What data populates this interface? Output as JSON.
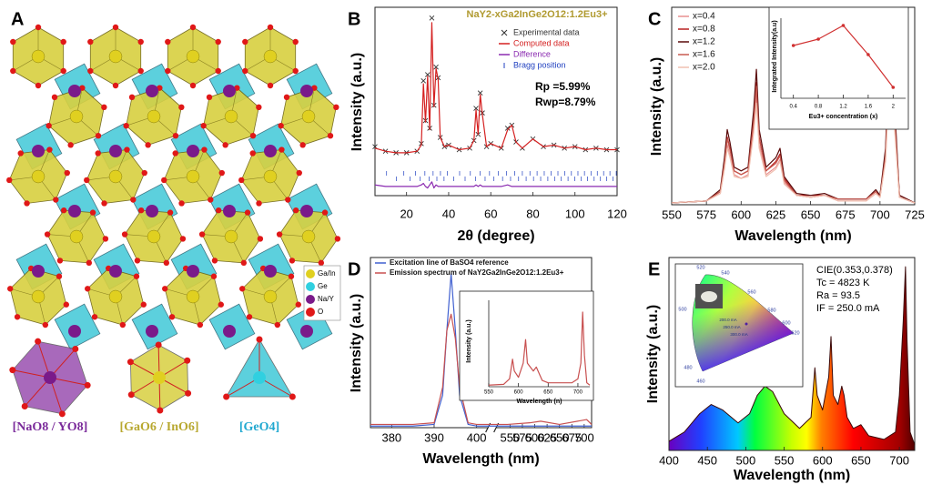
{
  "structure_panel": {
    "panel_label": "A",
    "legend": [
      {
        "label": "Ga/In",
        "color": "#e0d020"
      },
      {
        "label": "Ge",
        "color": "#30d0e0"
      },
      {
        "label": "Na/Y",
        "color": "#7a1a8a"
      },
      {
        "label": "O",
        "color": "#e01818"
      }
    ],
    "units": [
      {
        "label": "[NaO8 / YO8]",
        "color": "#7a2a9a"
      },
      {
        "label": "[GaO6 / InO6]",
        "color": "#b8a830"
      },
      {
        "label": "[GeO4]",
        "color": "#20a8d0"
      }
    ]
  },
  "chart_data": [
    {
      "type": "line",
      "panel_label": "B",
      "title": "NaY2-xGa2InGe2O12:1.2Eu3+",
      "annotations": [
        "Rp =5.99%",
        "Rwp=8.79%"
      ],
      "xlabel": "2θ (degree)",
      "ylabel": "Intensity (a.u.)",
      "xlim": [
        5,
        120
      ],
      "ylim": [
        -1.8,
        10.5
      ],
      "xticks": [
        20,
        40,
        60,
        80,
        100,
        120
      ],
      "x": [
        5,
        10,
        15,
        20,
        25,
        27,
        28,
        29,
        30,
        31,
        32,
        33,
        34,
        35,
        36,
        38,
        40,
        45,
        50,
        52,
        53,
        54,
        55,
        56,
        58,
        60,
        65,
        68,
        70,
        72,
        75,
        80,
        85,
        90,
        95,
        100,
        105,
        110,
        115,
        120
      ],
      "series": [
        {
          "name": "Experimental data",
          "color": "#333333",
          "style": "cross",
          "values": [
            1.4,
            1.1,
            1.0,
            1.0,
            1.1,
            1.6,
            5.7,
            3.1,
            6.1,
            2.6,
            9.8,
            4.1,
            6.6,
            5.9,
            2.0,
            1.4,
            1.5,
            1.2,
            1.3,
            1.8,
            3.9,
            2.2,
            4.9,
            3.6,
            1.4,
            1.6,
            1.3,
            2.6,
            2.8,
            1.7,
            1.3,
            1.9,
            1.4,
            1.5,
            1.3,
            1.4,
            1.2,
            1.3,
            1.2,
            1.2
          ]
        },
        {
          "name": "Computed data",
          "color": "#d42020",
          "style": "line",
          "values": [
            1.3,
            1.1,
            1.0,
            1.0,
            1.1,
            1.5,
            5.5,
            3.0,
            6.0,
            2.5,
            9.5,
            4.0,
            6.5,
            5.8,
            2.0,
            1.4,
            1.5,
            1.2,
            1.3,
            1.8,
            3.8,
            2.2,
            4.8,
            3.5,
            1.4,
            1.6,
            1.3,
            2.5,
            2.8,
            1.7,
            1.3,
            1.9,
            1.4,
            1.5,
            1.3,
            1.4,
            1.2,
            1.3,
            1.2,
            1.2
          ]
        },
        {
          "name": "Difference",
          "color": "#8a2ab0",
          "style": "line",
          "values": [
            -1.1,
            -1.2,
            -1.2,
            -1.2,
            -1.2,
            -1.1,
            -1.0,
            -1.2,
            -1.3,
            -1.1,
            -0.9,
            -1.3,
            -1.1,
            -1.2,
            -1.2,
            -1.2,
            -1.2,
            -1.2,
            -1.2,
            -1.2,
            -1.1,
            -1.2,
            -1.1,
            -1.2,
            -1.2,
            -1.2,
            -1.2,
            -1.1,
            -1.2,
            -1.2,
            -1.2,
            -1.2,
            -1.2,
            -1.2,
            -1.2,
            -1.2,
            -1.2,
            -1.2,
            -1.2,
            -1.2
          ]
        }
      ],
      "bragg": {
        "name": "Bragg position",
        "color": "#2040c0",
        "x": [
          10.5,
          15.2,
          18.7,
          21.6,
          24.2,
          26.5,
          28.7,
          30.7,
          32.6,
          34.4,
          36.1,
          37.8,
          39.4,
          42.4,
          45.2,
          47.8,
          50.3,
          52.7,
          55.0,
          57.3,
          59.4,
          61.5,
          63.6,
          65.6,
          67.5,
          69.4,
          71.3,
          73.2,
          75.0,
          76.8,
          78.6,
          80.3,
          82.0,
          83.7,
          85.4,
          87.1,
          88.7,
          90.3,
          91.9,
          93.5,
          95.1,
          96.7,
          98.3,
          99.9,
          101.4,
          103.0,
          104.5,
          106.0,
          107.6,
          109.1,
          110.6,
          112.1,
          113.6,
          115.1,
          116.6,
          118.1,
          119.6
        ]
      }
    },
    {
      "type": "line",
      "panel_label": "C",
      "xlabel": "Wavelength (nm)",
      "ylabel": "Intensity (a.u.)",
      "xlim": [
        550,
        725
      ],
      "ylim": [
        0,
        1.05
      ],
      "xticks": [
        550,
        575,
        600,
        625,
        650,
        675,
        700,
        725
      ],
      "x": [
        550,
        575,
        585,
        588,
        590,
        592,
        595,
        600,
        605,
        609,
        611,
        613,
        618,
        625,
        628,
        631,
        640,
        650,
        660,
        670,
        690,
        697,
        700,
        704,
        706,
        708,
        710,
        714,
        725
      ],
      "series": [
        {
          "name": "x=0.4",
          "color": "#e89090",
          "values": [
            0.01,
            0.02,
            0.06,
            0.2,
            0.32,
            0.26,
            0.16,
            0.14,
            0.16,
            0.4,
            0.58,
            0.32,
            0.16,
            0.2,
            0.24,
            0.12,
            0.05,
            0.04,
            0.05,
            0.02,
            0.02,
            0.06,
            0.04,
            0.24,
            0.56,
            0.8,
            0.48,
            0.04,
            0.01
          ]
        },
        {
          "name": "x=0.8",
          "color": "#b82020",
          "values": [
            0.01,
            0.02,
            0.07,
            0.23,
            0.36,
            0.3,
            0.18,
            0.16,
            0.18,
            0.45,
            0.65,
            0.36,
            0.18,
            0.23,
            0.27,
            0.14,
            0.05,
            0.05,
            0.05,
            0.03,
            0.03,
            0.07,
            0.05,
            0.27,
            0.63,
            0.9,
            0.54,
            0.05,
            0.01
          ]
        },
        {
          "name": "x=1.2",
          "color": "#5a0a0a",
          "values": [
            0.01,
            0.02,
            0.08,
            0.25,
            0.4,
            0.33,
            0.2,
            0.18,
            0.2,
            0.5,
            0.72,
            0.4,
            0.2,
            0.25,
            0.3,
            0.15,
            0.06,
            0.05,
            0.06,
            0.03,
            0.03,
            0.08,
            0.05,
            0.3,
            0.7,
            1.0,
            0.6,
            0.05,
            0.01
          ]
        },
        {
          "name": "x=1.6",
          "color": "#c85a50",
          "values": [
            0.01,
            0.02,
            0.07,
            0.22,
            0.35,
            0.29,
            0.18,
            0.16,
            0.18,
            0.44,
            0.63,
            0.35,
            0.18,
            0.22,
            0.26,
            0.13,
            0.05,
            0.04,
            0.05,
            0.03,
            0.03,
            0.07,
            0.04,
            0.26,
            0.62,
            0.88,
            0.53,
            0.04,
            0.01
          ]
        },
        {
          "name": "x=2.0",
          "color": "#f0c0b0",
          "values": [
            0.01,
            0.02,
            0.06,
            0.19,
            0.3,
            0.25,
            0.15,
            0.14,
            0.15,
            0.38,
            0.54,
            0.3,
            0.15,
            0.19,
            0.23,
            0.11,
            0.05,
            0.04,
            0.05,
            0.02,
            0.02,
            0.06,
            0.04,
            0.23,
            0.53,
            0.75,
            0.45,
            0.04,
            0.01
          ]
        }
      ]
    },
    {
      "type": "line",
      "xlabel": "Eu3+ concentration (x)",
      "ylabel": "Integrated Intensity(a.u)",
      "xlim": [
        0.2,
        2.2
      ],
      "ylim": [
        0.2,
        1.08
      ],
      "xticks": [
        0.4,
        0.8,
        1.2,
        1.6,
        2.0
      ],
      "x": [
        0.4,
        0.8,
        1.2,
        1.6,
        2.0
      ],
      "values": [
        0.78,
        0.85,
        1.0,
        0.68,
        0.32
      ],
      "color": "#d03030",
      "markers": true
    },
    {
      "type": "line",
      "panel_label": "D",
      "xlabel": "Wavelength (nm)",
      "ylabel": "Intensity (a.u.)",
      "xlim": [
        375,
        715
      ],
      "axis_break": [
        400,
        545
      ],
      "ylim": [
        0,
        1.05
      ],
      "xticks": [
        380,
        390,
        400,
        550,
        575,
        600,
        625,
        650,
        675,
        700
      ],
      "x": [
        375,
        385,
        390,
        392,
        393,
        394,
        395,
        396,
        398,
        400,
        545,
        590,
        612,
        650,
        705,
        715
      ],
      "series": [
        {
          "name": "Excitation line of BaSO4 reference",
          "color": "#4060d0",
          "values": [
            0.01,
            0.01,
            0.02,
            0.2,
            0.6,
            0.95,
            0.6,
            0.2,
            0.02,
            0.01,
            0.01,
            0.01,
            0.01,
            0.01,
            0.01,
            0.01
          ]
        },
        {
          "name": "Emission spectrum of NaY2Ga2InGe2O12:1.2Eu3+",
          "color": "#c85050",
          "values": [
            0.02,
            0.02,
            0.03,
            0.25,
            0.6,
            0.7,
            0.55,
            0.25,
            0.03,
            0.02,
            0.02,
            0.03,
            0.04,
            0.02,
            0.05,
            0.02
          ]
        }
      ]
    },
    {
      "type": "line",
      "xlabel": "Wavelength (n)",
      "ylabel": "Intensity (a.u.)",
      "xlim": [
        550,
        720
      ],
      "ylim": [
        0,
        1.1
      ],
      "xticks": [
        550,
        600,
        650,
        700
      ],
      "x": [
        550,
        575,
        585,
        590,
        593,
        600,
        608,
        612,
        615,
        625,
        630,
        640,
        650,
        690,
        700,
        705,
        708,
        711,
        715,
        720
      ],
      "values": [
        0.02,
        0.03,
        0.1,
        0.35,
        0.2,
        0.12,
        0.3,
        0.6,
        0.3,
        0.2,
        0.25,
        0.08,
        0.05,
        0.05,
        0.1,
        0.3,
        0.95,
        0.4,
        0.05,
        0.02
      ],
      "color": "#c85050"
    },
    {
      "type": "area",
      "panel_label": "E",
      "xlabel": "Wavelength (nm)",
      "ylabel": "Intensity (a.u.)",
      "xlim": [
        400,
        720
      ],
      "ylim": [
        0,
        1.05
      ],
      "xticks": [
        400,
        450,
        500,
        550,
        600,
        650,
        700
      ],
      "annotations": [
        "CIE(0.353,0.378)",
        "Tc = 4823 K",
        "Ra = 93.5",
        "IF = 250.0 mA"
      ],
      "x": [
        400,
        420,
        440,
        455,
        470,
        490,
        505,
        515,
        525,
        535,
        550,
        570,
        585,
        590,
        593,
        600,
        608,
        611,
        614,
        620,
        625,
        628,
        632,
        640,
        650,
        660,
        680,
        695,
        700,
        705,
        708,
        710,
        714,
        720
      ],
      "values": [
        0.05,
        0.1,
        0.2,
        0.25,
        0.22,
        0.15,
        0.2,
        0.3,
        0.35,
        0.32,
        0.2,
        0.12,
        0.18,
        0.45,
        0.3,
        0.22,
        0.4,
        0.62,
        0.3,
        0.25,
        0.35,
        0.3,
        0.18,
        0.12,
        0.14,
        0.08,
        0.06,
        0.1,
        0.3,
        0.7,
        1.0,
        0.6,
        0.1,
        0.03
      ],
      "color": "#3a0808",
      "cie_inset": {
        "locus_labels": [
          460,
          480,
          500,
          520,
          540,
          560,
          580,
          600,
          620
        ],
        "current_labels": [
          "200.0 mA",
          "250.0 mA",
          "300.0 mA"
        ]
      }
    }
  ]
}
